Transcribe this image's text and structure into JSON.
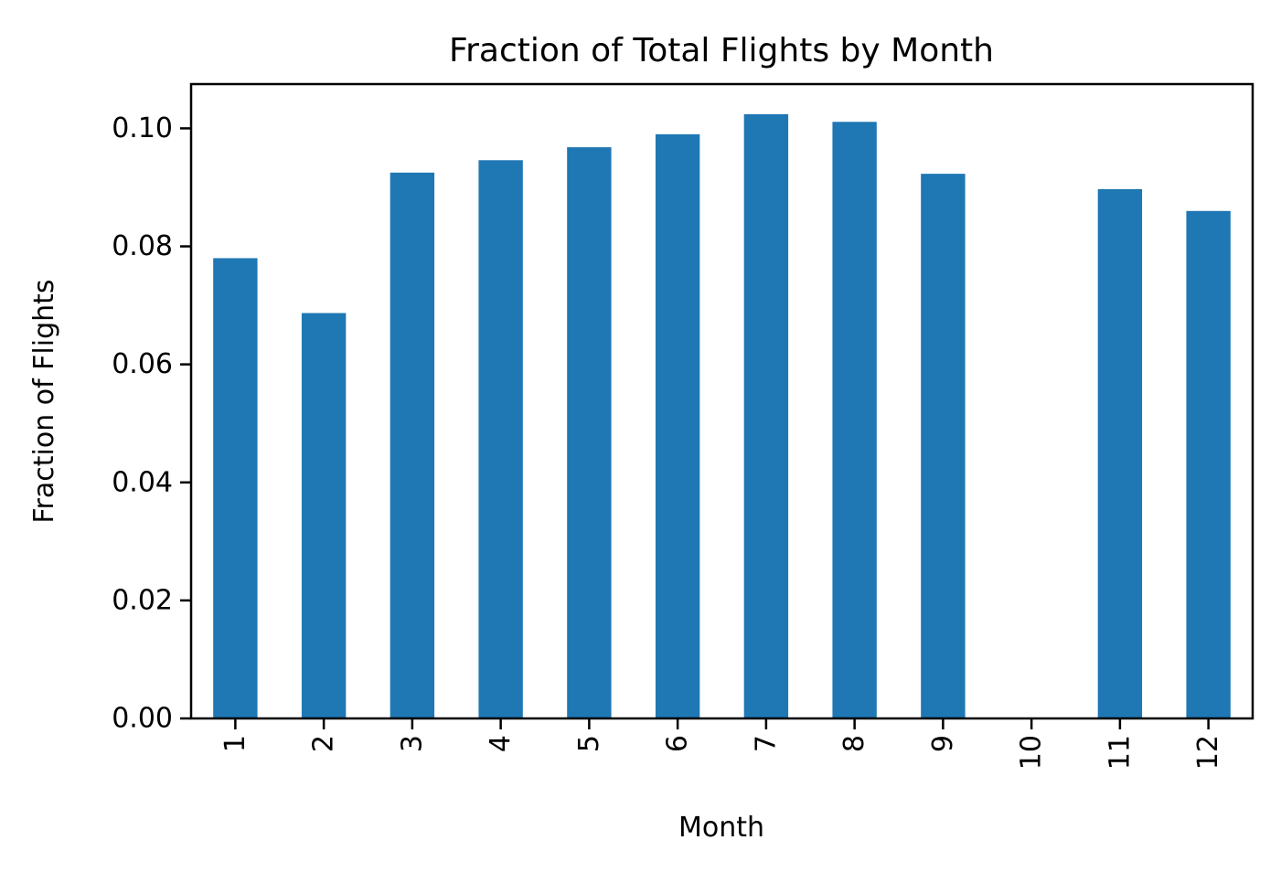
{
  "chart_data": {
    "type": "bar",
    "title": "Fraction of Total Flights by Month",
    "xlabel": "Month",
    "ylabel": "Fraction of Flights",
    "categories": [
      "1",
      "2",
      "3",
      "4",
      "5",
      "6",
      "7",
      "8",
      "9",
      "10",
      "11",
      "12"
    ],
    "values": [
      0.078,
      0.0687,
      0.0925,
      0.0946,
      0.0968,
      0.099,
      0.1024,
      0.1011,
      0.0923,
      0.0,
      0.0897,
      0.086
    ],
    "ylim": [
      0,
      0.1075
    ],
    "yticks": [
      "0.00",
      "0.02",
      "0.04",
      "0.06",
      "0.08",
      "0.10"
    ],
    "bar_color": "#1f77b4",
    "grid": false,
    "legend": "none"
  }
}
